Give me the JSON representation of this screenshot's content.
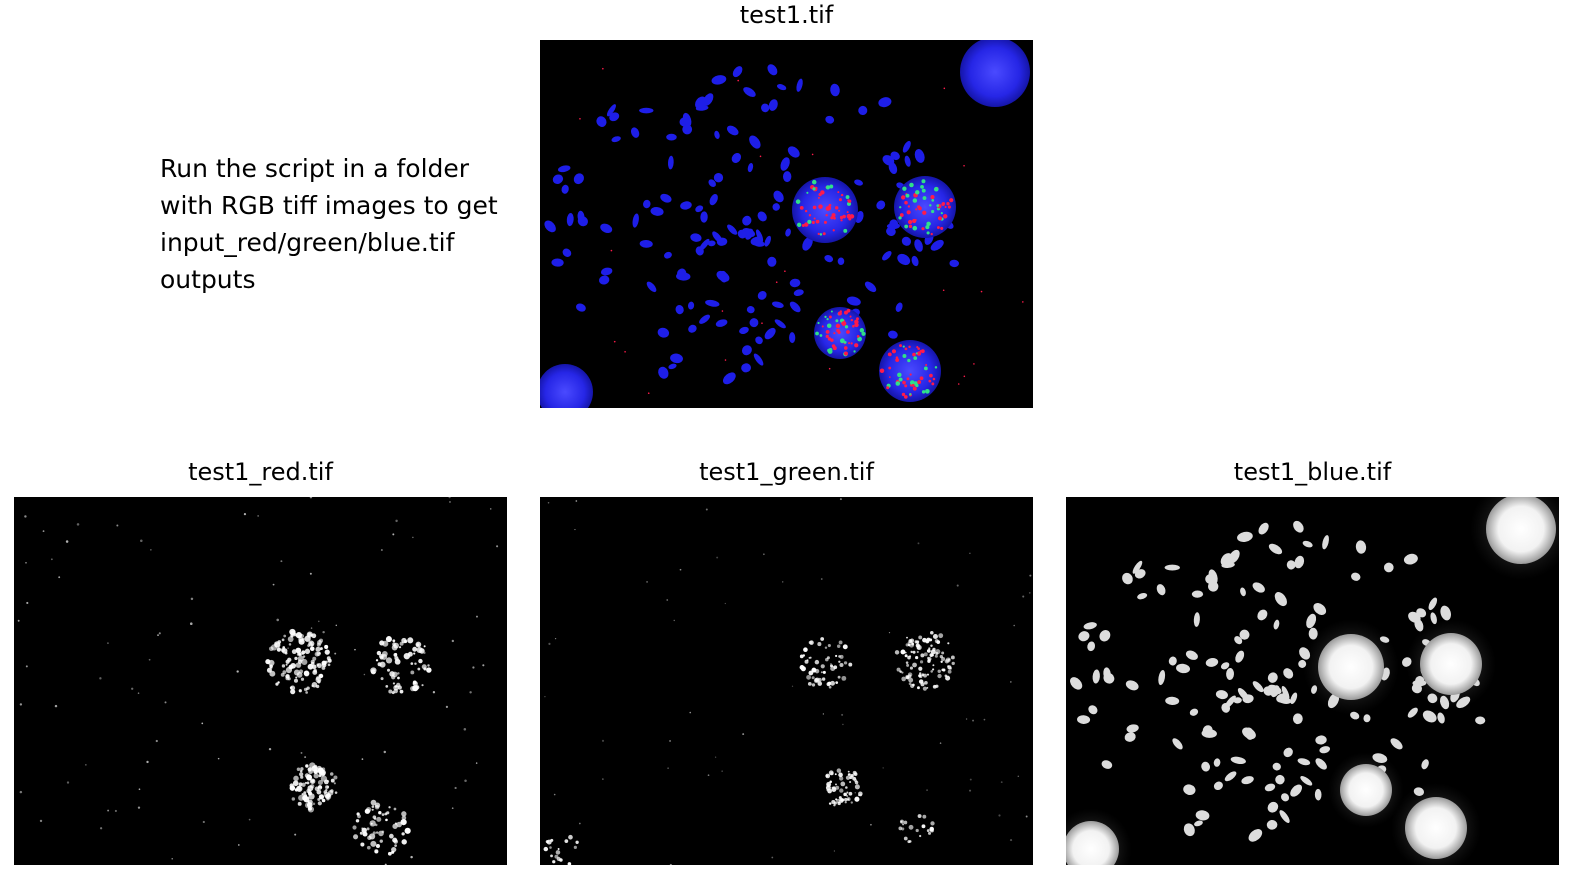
{
  "main_image": {
    "title": "test1.tif"
  },
  "instructions": {
    "lines": [
      "Run the script in a folder",
      "with RGB tiff images to get",
      "input_red/green/blue.tif",
      "outputs"
    ]
  },
  "channels": [
    {
      "title": "test1_red.tif",
      "channel": "red"
    },
    {
      "title": "test1_green.tif",
      "channel": "green"
    },
    {
      "title": "test1_blue.tif",
      "channel": "blue"
    }
  ],
  "colors": {
    "background": "#ffffff",
    "image_background": "#000000",
    "rgb_red": "#ff1a4a",
    "rgb_green": "#2fe08a",
    "rgb_blue": "#1e1ee8",
    "grayscale": "#ffffff"
  }
}
